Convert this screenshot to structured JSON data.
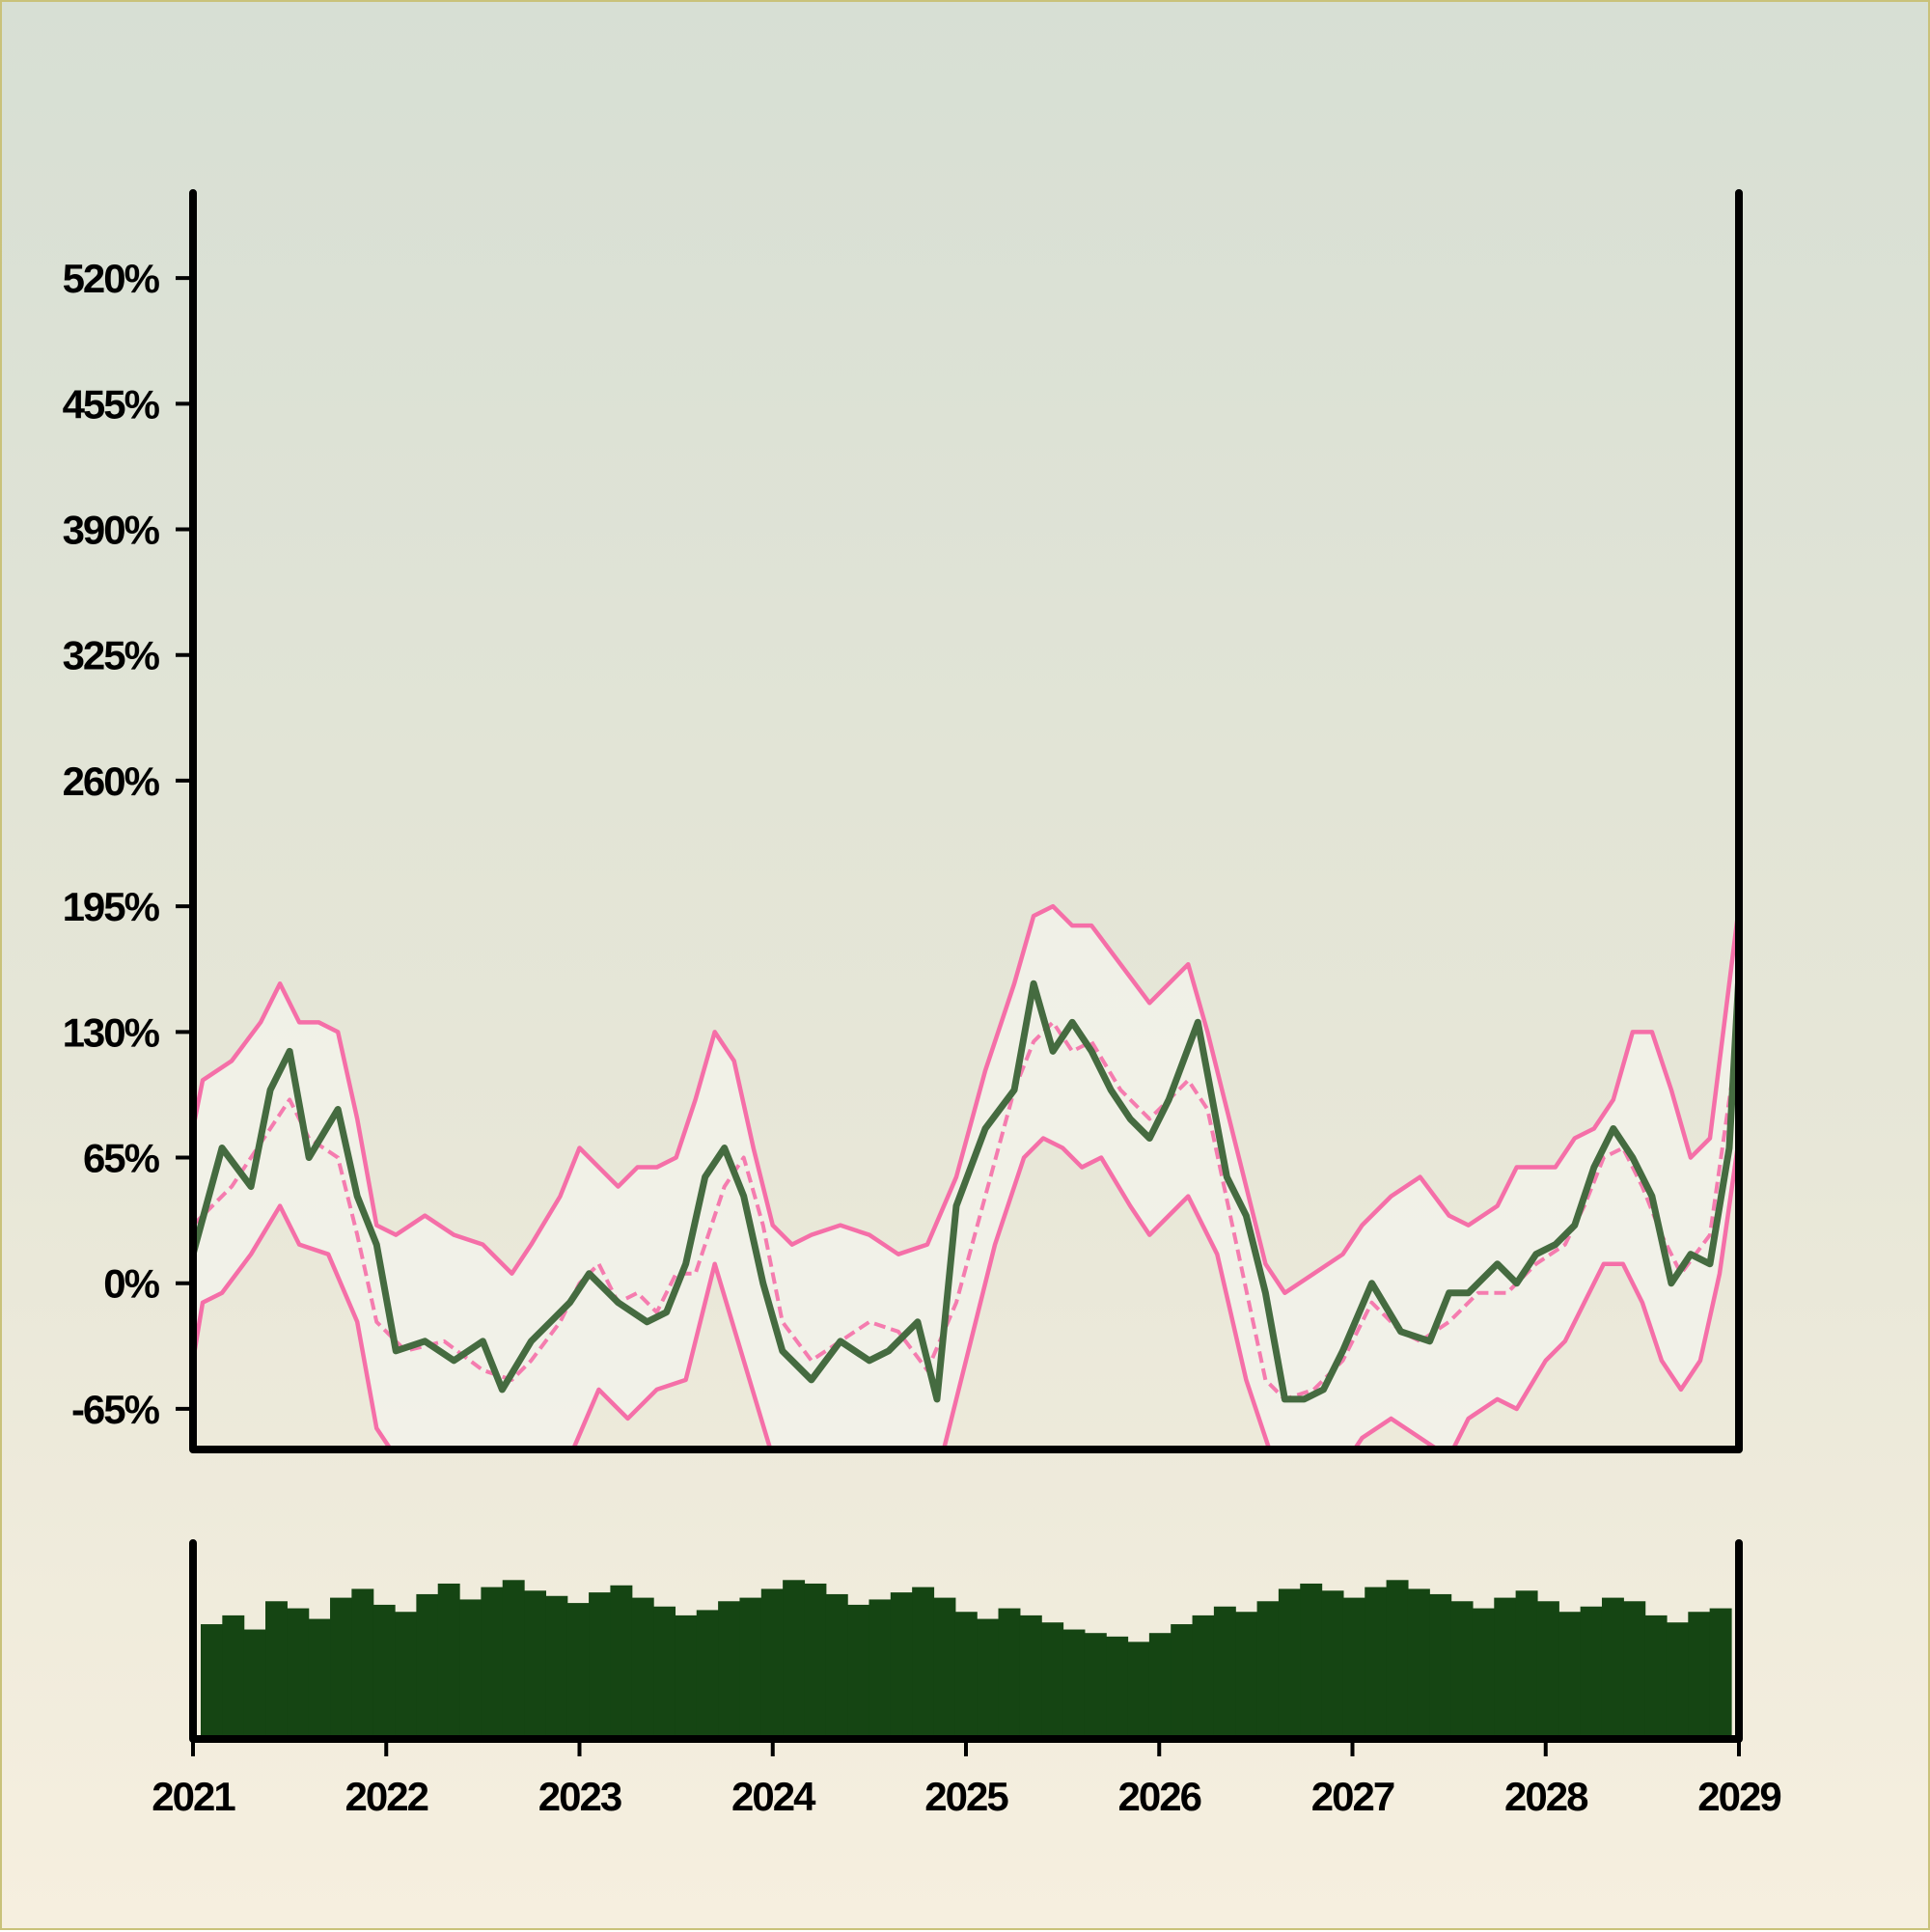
{
  "chart_data": {
    "type": "line",
    "title": "",
    "xlabel": "",
    "ylabel": "",
    "x_ticks": [
      "2021",
      "2022",
      "2023",
      "2024",
      "2025",
      "2026",
      "2027",
      "2028",
      "2029"
    ],
    "y_ticks": [
      "520%",
      "455%",
      "390%",
      "325%",
      "260%",
      "195%",
      "130%",
      "65%",
      "0%",
      "-65%"
    ],
    "y_tick_values": [
      520,
      455,
      390,
      325,
      260,
      195,
      130,
      65,
      0,
      -65
    ],
    "xlim": [
      2021.0,
      2029.0
    ],
    "ylim": [
      -86,
      564
    ],
    "grid": false,
    "series": [
      {
        "role": "price",
        "x": [
          2021.0,
          2021.15,
          2021.3,
          2021.4,
          2021.5,
          2021.6,
          2021.75,
          2021.85,
          2021.95,
          2022.05,
          2022.2,
          2022.35,
          2022.5,
          2022.6,
          2022.75,
          2022.85,
          2022.95,
          2023.05,
          2023.2,
          2023.35,
          2023.45,
          2023.55,
          2023.65,
          2023.75,
          2023.85,
          2023.95,
          2024.05,
          2024.2,
          2024.35,
          2024.5,
          2024.6,
          2024.75,
          2024.85,
          2024.95,
          2025.1,
          2025.25,
          2025.35,
          2025.45,
          2025.55,
          2025.65,
          2025.75,
          2025.85,
          2025.95,
          2026.05,
          2026.2,
          2026.35,
          2026.45,
          2026.55,
          2026.65,
          2026.75,
          2026.85,
          2026.95,
          2027.1,
          2027.25,
          2027.4,
          2027.5,
          2027.6,
          2027.75,
          2027.85,
          2027.95,
          2028.05,
          2028.15,
          2028.25,
          2028.35,
          2028.45,
          2028.55,
          2028.65,
          2028.75,
          2028.85,
          2028.95,
          2029.0
        ],
        "y": [
          15,
          70,
          50,
          100,
          120,
          65,
          90,
          45,
          20,
          -35,
          -30,
          -40,
          -30,
          -55,
          -30,
          -20,
          -10,
          5,
          -10,
          -20,
          -15,
          10,
          55,
          70,
          45,
          0,
          -35,
          -50,
          -30,
          -40,
          -35,
          -20,
          -60,
          40,
          80,
          100,
          155,
          120,
          135,
          120,
          100,
          85,
          75,
          95,
          135,
          55,
          35,
          -5,
          -60,
          -60,
          -55,
          -35,
          0,
          -25,
          -30,
          -5,
          -5,
          10,
          0,
          15,
          20,
          30,
          60,
          80,
          65,
          45,
          0,
          15,
          10,
          70,
          160
        ]
      },
      {
        "role": "moving-average",
        "style": "dashed",
        "x": [
          2021.0,
          2021.2,
          2021.4,
          2021.5,
          2021.6,
          2021.75,
          2021.85,
          2021.95,
          2022.1,
          2022.3,
          2022.5,
          2022.65,
          2022.75,
          2022.9,
          2023.0,
          2023.1,
          2023.2,
          2023.3,
          2023.4,
          2023.5,
          2023.6,
          2023.75,
          2023.85,
          2023.95,
          2024.05,
          2024.2,
          2024.35,
          2024.5,
          2024.65,
          2024.8,
          2024.95,
          2025.1,
          2025.25,
          2025.35,
          2025.45,
          2025.55,
          2025.65,
          2025.8,
          2025.95,
          2026.05,
          2026.15,
          2026.25,
          2026.4,
          2026.55,
          2026.65,
          2026.8,
          2026.95,
          2027.1,
          2027.25,
          2027.35,
          2027.5,
          2027.65,
          2027.8,
          2027.95,
          2028.1,
          2028.2,
          2028.3,
          2028.4,
          2028.5,
          2028.6,
          2028.7,
          2028.85,
          2029.0
        ],
        "y": [
          30,
          50,
          80,
          95,
          75,
          65,
          25,
          -20,
          -35,
          -30,
          -45,
          -50,
          -40,
          -20,
          0,
          10,
          -10,
          -5,
          -15,
          5,
          5,
          50,
          65,
          30,
          -20,
          -40,
          -30,
          -20,
          -25,
          -45,
          -10,
          45,
          100,
          125,
          135,
          120,
          125,
          100,
          85,
          95,
          105,
          90,
          20,
          -50,
          -60,
          -55,
          -40,
          -10,
          -25,
          -30,
          -20,
          -5,
          -5,
          10,
          20,
          40,
          65,
          70,
          50,
          25,
          5,
          25,
          130
        ]
      },
      {
        "role": "upper-band",
        "x": [
          2021.0,
          2021.05,
          2021.2,
          2021.35,
          2021.45,
          2021.55,
          2021.65,
          2021.75,
          2021.85,
          2021.95,
          2022.05,
          2022.2,
          2022.35,
          2022.5,
          2022.65,
          2022.75,
          2022.9,
          2023.0,
          2023.1,
          2023.2,
          2023.3,
          2023.4,
          2023.5,
          2023.6,
          2023.7,
          2023.8,
          2023.9,
          2024.0,
          2024.1,
          2024.2,
          2024.35,
          2024.5,
          2024.65,
          2024.8,
          2024.95,
          2025.1,
          2025.25,
          2025.35,
          2025.45,
          2025.55,
          2025.65,
          2025.8,
          2025.95,
          2026.05,
          2026.15,
          2026.25,
          2026.4,
          2026.55,
          2026.65,
          2026.8,
          2026.95,
          2027.05,
          2027.2,
          2027.35,
          2027.5,
          2027.6,
          2027.75,
          2027.85,
          2027.95,
          2028.05,
          2028.15,
          2028.25,
          2028.35,
          2028.45,
          2028.55,
          2028.65,
          2028.75,
          2028.85,
          2029.0
        ],
        "y": [
          80,
          105,
          115,
          135,
          155,
          135,
          135,
          130,
          85,
          30,
          25,
          35,
          25,
          20,
          5,
          20,
          45,
          70,
          60,
          50,
          60,
          60,
          65,
          95,
          130,
          115,
          70,
          30,
          20,
          25,
          30,
          25,
          15,
          20,
          55,
          110,
          155,
          190,
          195,
          185,
          185,
          165,
          145,
          155,
          165,
          130,
          70,
          10,
          -5,
          5,
          15,
          30,
          45,
          55,
          35,
          30,
          40,
          60,
          60,
          60,
          75,
          80,
          95,
          130,
          130,
          100,
          65,
          75,
          195
        ]
      },
      {
        "role": "lower-band",
        "x": [
          2021.0,
          2021.05,
          2021.15,
          2021.3,
          2021.45,
          2021.55,
          2021.7,
          2021.85,
          2021.95,
          2022.05,
          2022.2,
          2022.4,
          2022.6,
          2022.8,
          2022.95,
          2023.1,
          2023.25,
          2023.4,
          2023.55,
          2023.7,
          2023.85,
          2024.0,
          2024.15,
          2024.3,
          2024.5,
          2024.7,
          2024.85,
          2025.0,
          2025.15,
          2025.3,
          2025.4,
          2025.5,
          2025.6,
          2025.7,
          2025.85,
          2025.95,
          2026.05,
          2026.15,
          2026.3,
          2026.45,
          2026.6,
          2026.8,
          2026.95,
          2027.05,
          2027.2,
          2027.35,
          2027.5,
          2027.6,
          2027.75,
          2027.85,
          2028.0,
          2028.1,
          2028.2,
          2028.3,
          2028.4,
          2028.5,
          2028.6,
          2028.7,
          2028.8,
          2028.9,
          2029.0
        ],
        "y": [
          -40,
          -10,
          -5,
          15,
          40,
          20,
          15,
          -20,
          -75,
          -90,
          -95,
          -100,
          -100,
          -95,
          -90,
          -55,
          -70,
          -55,
          -50,
          10,
          -40,
          -90,
          -100,
          -105,
          -105,
          -100,
          -100,
          -40,
          20,
          65,
          75,
          70,
          60,
          65,
          40,
          25,
          35,
          45,
          15,
          -50,
          -95,
          -105,
          -95,
          -80,
          -70,
          -80,
          -90,
          -70,
          -60,
          -65,
          -40,
          -30,
          -10,
          10,
          10,
          -10,
          -40,
          -55,
          -40,
          5,
          75
        ]
      }
    ],
    "volume": {
      "x_start": 2021.0,
      "x_end": 2029.0,
      "levels": [
        0.65,
        0.7,
        0.62,
        0.78,
        0.74,
        0.68,
        0.8,
        0.85,
        0.76,
        0.72,
        0.82,
        0.88,
        0.79,
        0.86,
        0.9,
        0.84,
        0.81,
        0.77,
        0.83,
        0.87,
        0.8,
        0.75,
        0.7,
        0.73,
        0.78,
        0.8,
        0.85,
        0.9,
        0.88,
        0.82,
        0.76,
        0.79,
        0.83,
        0.86,
        0.8,
        0.72,
        0.68,
        0.74,
        0.7,
        0.66,
        0.62,
        0.6,
        0.58,
        0.55,
        0.6,
        0.65,
        0.7,
        0.75,
        0.72,
        0.78,
        0.85,
        0.88,
        0.84,
        0.8,
        0.86,
        0.9,
        0.85,
        0.82,
        0.78,
        0.74,
        0.8,
        0.84,
        0.78,
        0.72,
        0.75,
        0.8,
        0.78,
        0.7,
        0.66,
        0.72,
        0.74
      ]
    },
    "colors": {
      "price": "#456b40",
      "bands": "#f56fa8",
      "band_fill": "#f2f2ea",
      "volume": "#154513",
      "axis": "#000000"
    }
  }
}
